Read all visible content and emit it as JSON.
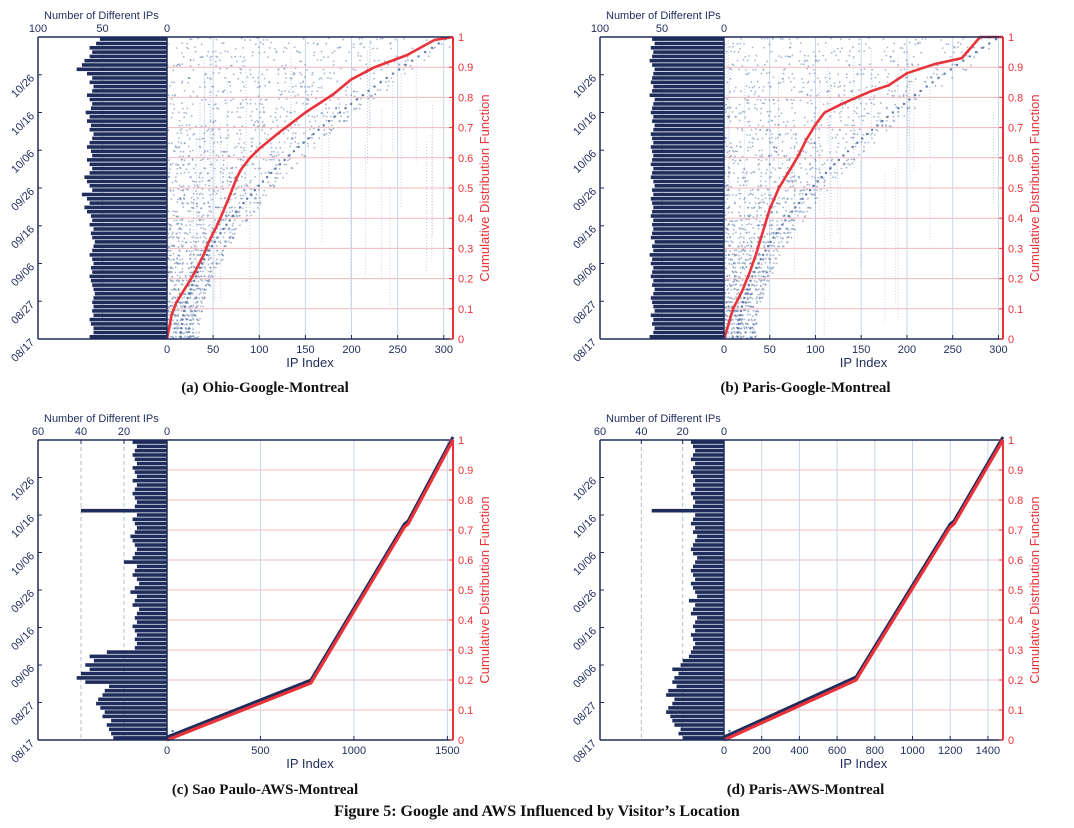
{
  "figure_caption": "Figure 5: Google and AWS Influenced by Visitor’s Location",
  "colors": {
    "navy": "#1f2d5c",
    "scatter": "#5b7aa8",
    "cdf": "#e8333a",
    "grid_red": "#f3b8bd",
    "grid_blue": "#c9d6e8"
  },
  "chart_data": [
    {
      "type": "scatter",
      "caption": "(a) Ohio-Google-Montreal",
      "xlabel": "IP Index",
      "ylabel_right": "Cumulative Distribution Function",
      "top_axis_label": "Number of Different IPs",
      "x_ticks": [
        0,
        50,
        100,
        150,
        200,
        250,
        300
      ],
      "xlim": [
        0,
        310
      ],
      "top_ticks": [
        100,
        50,
        0
      ],
      "top_lim": [
        100,
        0
      ],
      "date_ticks": [
        "08/17",
        "08/27",
        "09/06",
        "09/16",
        "09/26",
        "10/06",
        "10/16",
        "10/26"
      ],
      "cdf_ticks": [
        0,
        0.1,
        0.2,
        0.3,
        0.4,
        0.5,
        0.6,
        0.7,
        0.8,
        0.9,
        1
      ],
      "cdf_curve": {
        "x": [
          0,
          5,
          10,
          20,
          30,
          40,
          45,
          55,
          62,
          70,
          75,
          80,
          90,
          100,
          120,
          150,
          180,
          200,
          225,
          260,
          290,
          310
        ],
        "y": [
          0,
          0.08,
          0.12,
          0.17,
          0.22,
          0.28,
          0.32,
          0.38,
          0.43,
          0.49,
          0.53,
          0.56,
          0.6,
          0.63,
          0.68,
          0.75,
          0.81,
          0.86,
          0.9,
          0.94,
          0.99,
          1
        ]
      },
      "daily_ip_counts": [
        60,
        57,
        57,
        59,
        60,
        57,
        58,
        57,
        58,
        57,
        56,
        57,
        58,
        59,
        60,
        58,
        59,
        57,
        58,
        60,
        58,
        57,
        56,
        58,
        59,
        57,
        60,
        58,
        59,
        62,
        64,
        60,
        62,
        66,
        58,
        60,
        62,
        64,
        60,
        58,
        60,
        62,
        58,
        59,
        62,
        60,
        58,
        57,
        60,
        59,
        62,
        60,
        63,
        59,
        58,
        60,
        62,
        58,
        57,
        60,
        58,
        62,
        70,
        66,
        64,
        60,
        58,
        60,
        55,
        52
      ]
    },
    {
      "type": "scatter",
      "caption": "(b) Paris-Google-Montreal",
      "xlabel": "IP Index",
      "ylabel_right": "Cumulative Distribution Function",
      "top_axis_label": "Number of Different IPs",
      "x_ticks": [
        0,
        50,
        100,
        150,
        200,
        250,
        300
      ],
      "xlim": [
        0,
        305
      ],
      "top_ticks": [
        100,
        50,
        0
      ],
      "top_lim": [
        100,
        0
      ],
      "date_ticks": [
        "08/17",
        "08/27",
        "09/06",
        "09/16",
        "09/26",
        "10/06",
        "10/16",
        "10/26"
      ],
      "cdf_ticks": [
        0,
        0.1,
        0.2,
        0.3,
        0.4,
        0.5,
        0.6,
        0.7,
        0.8,
        0.9,
        1
      ],
      "cdf_curve": {
        "x": [
          0,
          5,
          10,
          20,
          28,
          35,
          42,
          50,
          60,
          70,
          80,
          90,
          100,
          110,
          130,
          160,
          180,
          200,
          230,
          260,
          280,
          305
        ],
        "y": [
          0,
          0.05,
          0.1,
          0.16,
          0.22,
          0.28,
          0.35,
          0.43,
          0.5,
          0.55,
          0.6,
          0.66,
          0.71,
          0.75,
          0.78,
          0.82,
          0.84,
          0.88,
          0.91,
          0.93,
          1,
          1
        ]
      },
      "daily_ip_counts": [
        60,
        57,
        56,
        58,
        57,
        59,
        56,
        57,
        58,
        59,
        57,
        56,
        58,
        57,
        59,
        58,
        57,
        59,
        58,
        60,
        57,
        58,
        56,
        59,
        58,
        57,
        58,
        57,
        59,
        58,
        57,
        58,
        59,
        57,
        58,
        56,
        57,
        59,
        58,
        57,
        59,
        58,
        57,
        58,
        59,
        57,
        58,
        59,
        57,
        56,
        58,
        57,
        59,
        58,
        57,
        56,
        60,
        58,
        57,
        59,
        58,
        57,
        56,
        58,
        60,
        58,
        57,
        59,
        56,
        58
      ]
    },
    {
      "type": "scatter",
      "caption": "(c) Sao Paulo-AWS-Montreal",
      "xlabel": "IP Index",
      "ylabel_right": "Cumulative Distribution Function",
      "top_axis_label": "Number of Different IPs",
      "x_ticks": [
        0,
        500,
        1000,
        1500
      ],
      "xlim": [
        0,
        1530
      ],
      "top_ticks": [
        60,
        40,
        20,
        0
      ],
      "top_lim": [
        60,
        0
      ],
      "date_ticks": [
        "08/17",
        "08/27",
        "09/06",
        "09/16",
        "09/26",
        "10/06",
        "10/16",
        "10/26"
      ],
      "cdf_ticks": [
        0,
        0.1,
        0.2,
        0.3,
        0.4,
        0.5,
        0.6,
        0.7,
        0.8,
        0.9,
        1
      ],
      "cdf_curve": {
        "x": [
          0,
          770,
          1270,
          1290,
          1530
        ],
        "y": [
          0,
          0.19,
          0.71,
          0.72,
          1
        ]
      },
      "daily_ip_counts": [
        25,
        26,
        27,
        28,
        26,
        30,
        29,
        31,
        33,
        32,
        30,
        29,
        27,
        38,
        42,
        40,
        36,
        38,
        34,
        36,
        28,
        15,
        14,
        15,
        14,
        15,
        16,
        14,
        15,
        14,
        13,
        16,
        15,
        14,
        17,
        15,
        13,
        14,
        16,
        15,
        14,
        20,
        16,
        15,
        14,
        15,
        16,
        17,
        15,
        14,
        15,
        16,
        14,
        40,
        15,
        14,
        15,
        16,
        15,
        14,
        16,
        14,
        15,
        16,
        14,
        15,
        16,
        15,
        14,
        16
      ]
    },
    {
      "type": "scatter",
      "caption": "(d) Paris-AWS-Montreal",
      "xlabel": "IP Index",
      "ylabel_right": "Cumulative Distribution Function",
      "top_axis_label": "Number of Different IPs",
      "x_ticks": [
        0,
        200,
        400,
        600,
        800,
        1000,
        1200,
        1400
      ],
      "xlim": [
        0,
        1480
      ],
      "top_ticks": [
        60,
        40,
        20,
        0
      ],
      "top_lim": [
        60,
        0
      ],
      "date_ticks": [
        "08/17",
        "08/27",
        "09/06",
        "09/16",
        "09/26",
        "10/06",
        "10/16",
        "10/26"
      ],
      "cdf_ticks": [
        0,
        0.1,
        0.2,
        0.3,
        0.4,
        0.5,
        0.6,
        0.7,
        0.8,
        0.9,
        1
      ],
      "cdf_curve": {
        "x": [
          0,
          700,
          1200,
          1220,
          1480
        ],
        "y": [
          0,
          0.2,
          0.71,
          0.72,
          1
        ]
      },
      "daily_ip_counts": [
        20,
        22,
        21,
        24,
        25,
        26,
        28,
        27,
        25,
        24,
        28,
        27,
        23,
        25,
        24,
        22,
        25,
        21,
        20,
        17,
        16,
        15,
        14,
        15,
        16,
        14,
        15,
        14,
        13,
        16,
        15,
        14,
        17,
        13,
        14,
        15,
        16,
        14,
        15,
        16,
        15,
        14,
        13,
        15,
        16,
        15,
        14,
        13,
        15,
        14,
        16,
        15,
        14,
        35,
        15,
        14,
        15,
        16,
        14,
        15,
        14,
        15,
        16,
        15,
        14,
        16,
        15,
        14,
        15,
        16
      ]
    }
  ]
}
